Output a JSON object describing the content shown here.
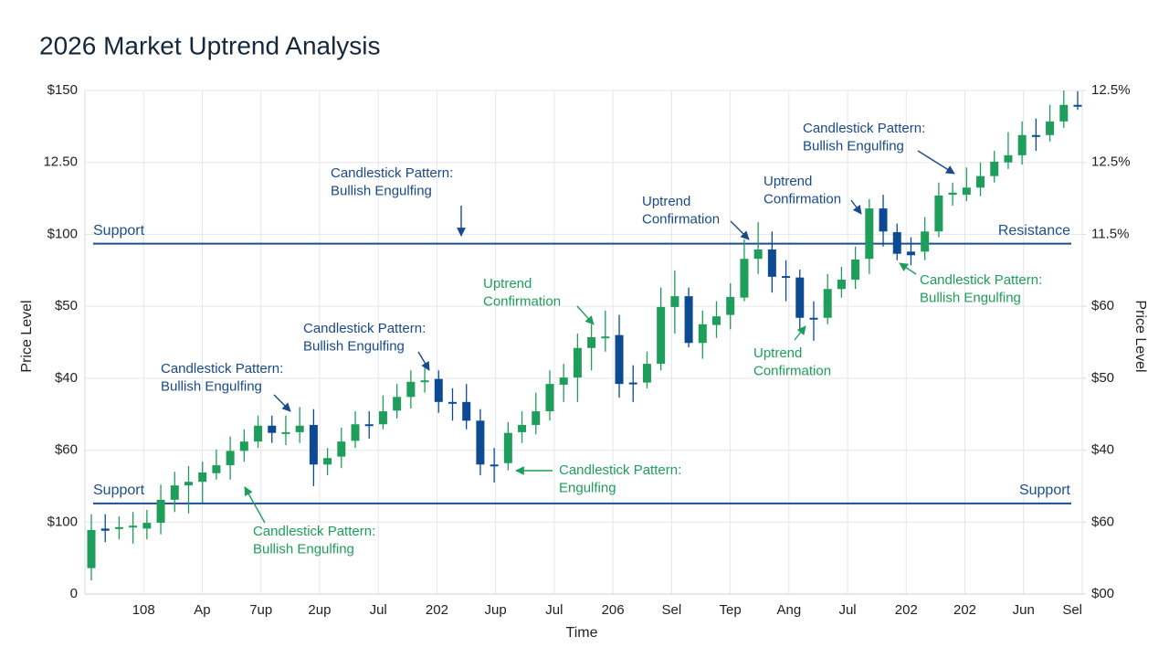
{
  "chart_data": {
    "type": "candlestick",
    "title": "2026 Market Uptrend Analysis",
    "x_label": "Time",
    "y_label": "Price Level",
    "y2_label": "Price Level",
    "grid": true,
    "up_color": "#1e9e5a",
    "down_color": "#0d4a94",
    "xlim": [
      0,
      17
    ],
    "xticks": [
      {
        "value": 1,
        "label": "108"
      },
      {
        "value": 2,
        "label": "Ap"
      },
      {
        "value": 3,
        "label": "7up"
      },
      {
        "value": 4,
        "label": "2up"
      },
      {
        "value": 5,
        "label": "Jul"
      },
      {
        "value": 6,
        "label": "202"
      },
      {
        "value": 7,
        "label": "Jup"
      },
      {
        "value": 8,
        "label": "Jul"
      },
      {
        "value": 9,
        "label": "206"
      },
      {
        "value": 10,
        "label": "Sel"
      },
      {
        "value": 11,
        "label": "Tep"
      },
      {
        "value": 12,
        "label": "Ang"
      },
      {
        "value": 13,
        "label": "Jul"
      },
      {
        "value": 14,
        "label": "202"
      },
      {
        "value": 15,
        "label": "202"
      },
      {
        "value": 16,
        "label": "Jun"
      },
      {
        "value": 17,
        "label": "Sel"
      }
    ],
    "ylim": [
      0,
      7
    ],
    "yticks": [
      0,
      {
        "value": 1,
        "label": "$100"
      },
      {
        "value": 2,
        "label": "$60"
      },
      {
        "value": 3,
        "label": "$40"
      },
      {
        "value": 4,
        "label": "$50"
      },
      {
        "value": 5,
        "label": "$100"
      },
      {
        "value": 6,
        "label": "12.50"
      },
      {
        "value": 7,
        "label": "$150"
      }
    ],
    "y2lim": [
      0,
      7
    ],
    "y2ticks": [
      {
        "value": 0,
        "label": "$00"
      },
      {
        "value": 1,
        "label": "$60"
      },
      {
        "value": 2,
        "label": "$40"
      },
      {
        "value": 3,
        "label": "$50"
      },
      {
        "value": 4,
        "label": "$60"
      },
      {
        "value": 5,
        "label": "11.5%"
      },
      {
        "value": 6,
        "label": "12.5%"
      },
      {
        "value": 7,
        "label": "12.5%"
      }
    ],
    "open": [
      0.36,
      0.91,
      0.92,
      0.94,
      0.91,
      0.99,
      1.31,
      1.51,
      1.56,
      1.68,
      1.79,
      1.99,
      2.12,
      2.34,
      2.24,
      2.25,
      2.35,
      1.8,
      1.91,
      2.13,
      2.36,
      2.36,
      2.55,
      2.74,
      2.95,
      2.99,
      2.67,
      2.67,
      2.41,
      1.8,
      1.82,
      2.25,
      2.35,
      2.54,
      2.91,
      3.01,
      3.42,
      3.57,
      3.6,
      2.94,
      2.94,
      3.2,
      3.99,
      4.14,
      3.49,
      3.74,
      3.88,
      4.12,
      4.66,
      4.79,
      4.42,
      4.4,
      3.84,
      3.84,
      4.24,
      4.37,
      4.66,
      5.36,
      5.03,
      4.76,
      4.76,
      5.04,
      5.55,
      5.55,
      5.65,
      5.81,
      6.0,
      6.1,
      6.38,
      6.38,
      6.57,
      6.8
    ],
    "high": [
      1.11,
      1.11,
      1.08,
      1.14,
      1.17,
      1.52,
      1.7,
      1.78,
      1.84,
      2.01,
      2.19,
      2.29,
      2.48,
      2.48,
      2.48,
      2.6,
      2.57,
      2.03,
      2.31,
      2.54,
      2.54,
      2.76,
      2.92,
      3.11,
      3.18,
      3.11,
      2.86,
      2.92,
      2.57,
      2.03,
      2.39,
      2.54,
      2.8,
      3.11,
      3.2,
      3.62,
      3.75,
      3.94,
      3.88,
      3.18,
      3.37,
      4.26,
      4.5,
      4.26,
      3.94,
      4.07,
      4.32,
      4.93,
      5.17,
      5.04,
      4.64,
      4.51,
      4.07,
      4.45,
      4.55,
      4.83,
      5.49,
      5.55,
      5.15,
      4.96,
      5.24,
      5.72,
      5.72,
      5.93,
      6.0,
      6.16,
      6.42,
      6.57,
      6.61,
      6.8,
      7.0,
      6.99
    ],
    "low": [
      0.19,
      0.72,
      0.76,
      0.7,
      0.76,
      0.83,
      1.14,
      1.12,
      1.27,
      1.59,
      1.59,
      1.84,
      2.03,
      2.1,
      2.07,
      2.1,
      1.5,
      1.65,
      1.75,
      2.03,
      2.16,
      2.29,
      2.44,
      2.58,
      2.8,
      2.52,
      2.41,
      2.29,
      1.65,
      1.55,
      1.72,
      2.1,
      2.22,
      2.41,
      2.67,
      2.67,
      3.11,
      3.37,
      2.73,
      2.67,
      2.86,
      3.11,
      3.62,
      3.43,
      3.27,
      3.56,
      3.68,
      4.07,
      4.45,
      4.19,
      4.07,
      3.68,
      3.52,
      3.75,
      4.12,
      4.24,
      4.45,
      4.83,
      4.64,
      4.57,
      4.64,
      4.96,
      5.4,
      5.46,
      5.53,
      5.72,
      5.91,
      5.97,
      6.16,
      6.29,
      6.48,
      6.73
    ],
    "close": [
      0.89,
      0.88,
      0.93,
      0.95,
      0.99,
      1.31,
      1.51,
      1.56,
      1.69,
      1.79,
      1.99,
      2.12,
      2.34,
      2.24,
      2.25,
      2.34,
      1.8,
      1.89,
      2.12,
      2.36,
      2.35,
      2.54,
      2.74,
      2.95,
      2.97,
      2.67,
      2.66,
      2.41,
      1.8,
      1.79,
      2.24,
      2.35,
      2.54,
      2.92,
      3.01,
      3.42,
      3.57,
      3.58,
      2.92,
      2.92,
      3.2,
      3.99,
      4.14,
      3.49,
      3.75,
      3.86,
      4.13,
      4.66,
      4.79,
      4.41,
      4.4,
      3.84,
      3.83,
      4.24,
      4.37,
      4.65,
      5.36,
      5.04,
      4.73,
      4.71,
      5.04,
      5.54,
      5.58,
      5.65,
      5.81,
      6.01,
      6.1,
      6.38,
      6.37,
      6.57,
      6.8,
      6.79
    ],
    "levels": [
      {
        "value": 4.87,
        "color": "#1d4f8a",
        "labels": [
          "Support",
          "Resistance"
        ]
      },
      {
        "value": 1.26,
        "color": "#1d4f8a",
        "labels": [
          "Support",
          "Support"
        ]
      }
    ],
    "annotations": [
      {
        "lines": [
          "Candlestick Pattern:",
          "Bullish Engulfing"
        ],
        "color": "#1a4a8a"
      },
      {
        "lines": [
          "Uptrend",
          "Confirmation"
        ],
        "color": "#1a4a8a"
      },
      {
        "lines": [
          "Uptrend",
          "Confirmation"
        ],
        "color": "#1a4a8a"
      },
      {
        "lines": [
          "Candlestick Pattern:",
          "Bullish Engulfing"
        ],
        "color": "#1a4a8a"
      },
      {
        "lines": [
          "Candlestick Pattern:",
          "Bullish Engulfing"
        ],
        "color": "#1e9e5a"
      },
      {
        "lines": [
          "Uptrend",
          "Confirmation"
        ],
        "color": "#1e9e5a"
      },
      {
        "lines": [
          "Candlestick Pattern:",
          "Bullish Engulfing"
        ],
        "color": "#1a4a8a"
      },
      {
        "lines": [
          "Candlestick Pattern:",
          "Bullish Engulfing"
        ],
        "color": "#1a4a8a"
      },
      {
        "lines": [
          "Uptrend",
          "Confirmation"
        ],
        "color": "#1e9e5a"
      },
      {
        "lines": [
          "Candlestick Pattern:",
          "Engulfing"
        ],
        "color": "#1e9e5a"
      },
      {
        "lines": [
          "Candlestick Pattern:",
          "Bullish Engulfing"
        ],
        "color": "#1e9e5a"
      }
    ]
  }
}
